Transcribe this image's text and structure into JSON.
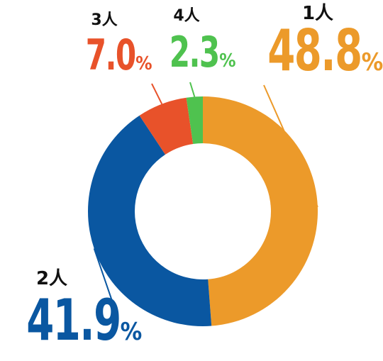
{
  "chart_data": {
    "type": "pie",
    "categories": [
      "1人",
      "2人",
      "3人",
      "4人"
    ],
    "values": [
      48.8,
      41.9,
      7.0,
      2.3
    ],
    "value_labels": [
      "48.8",
      "41.9",
      "7.0",
      "2.3"
    ],
    "unit": "%",
    "colors": [
      "#ec9a2a",
      "#0a57a1",
      "#e8522a",
      "#4fc24f"
    ],
    "donut": true,
    "start_angle_deg": 0,
    "direction": "clockwise"
  }
}
